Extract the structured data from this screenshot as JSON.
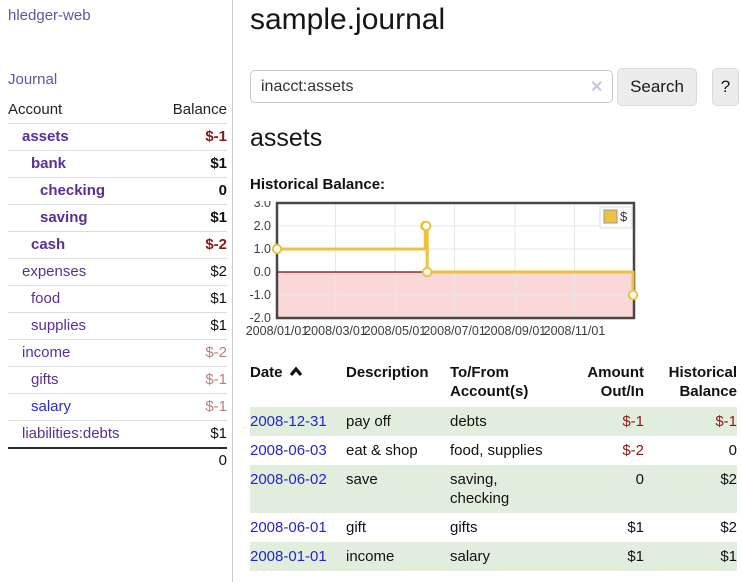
{
  "sidebar": {
    "app_title": "hledger-web",
    "journal_link": "Journal",
    "account_header": "Account",
    "balance_header": "Balance",
    "accounts": [
      {
        "name": "assets",
        "depth": 1,
        "balance": "$-1",
        "emph": true,
        "balance_tone": "neg-strong"
      },
      {
        "name": "bank",
        "depth": 2,
        "balance": "$1",
        "emph": true,
        "balance_tone": "pos"
      },
      {
        "name": "checking",
        "depth": 3,
        "balance": "0",
        "emph": true,
        "balance_tone": "pos"
      },
      {
        "name": "saving",
        "depth": 3,
        "balance": "$1",
        "emph": true,
        "balance_tone": "pos"
      },
      {
        "name": "cash",
        "depth": 2,
        "balance": "$-2",
        "emph": true,
        "balance_tone": "neg-strong"
      },
      {
        "name": "expenses",
        "depth": 1,
        "balance": "$2",
        "emph": false,
        "balance_tone": "pos"
      },
      {
        "name": "food",
        "depth": 2,
        "balance": "$1",
        "emph": false,
        "balance_tone": "pos"
      },
      {
        "name": "supplies",
        "depth": 2,
        "balance": "$1",
        "emph": false,
        "balance_tone": "pos"
      },
      {
        "name": "income",
        "depth": 1,
        "balance": "$-2",
        "emph": false,
        "balance_tone": "neg-muted"
      },
      {
        "name": "gifts",
        "depth": 2,
        "balance": "$-1",
        "emph": false,
        "balance_tone": "neg-muted"
      },
      {
        "name": "salary",
        "depth": 2,
        "balance": "$-1",
        "emph": false,
        "balance_tone": "neg-muted",
        "link_tone": "blue"
      },
      {
        "name": "liabilities:debts",
        "depth": 1,
        "balance": "$1",
        "emph": false,
        "balance_tone": "pos"
      }
    ],
    "total": "0"
  },
  "header": {
    "title": "sample.journal"
  },
  "search": {
    "value": "inacct:assets",
    "clear_icon": "✕",
    "button_label": "Search",
    "help_label": "?"
  },
  "account_page": {
    "heading": "assets",
    "chart_label": "Historical Balance:"
  },
  "chart_data": {
    "type": "line",
    "step": true,
    "title": "Historical Balance",
    "series": [
      {
        "name": "$",
        "color": "#edc240",
        "points": [
          [
            "2008-01-01",
            1
          ],
          [
            "2008-06-01",
            2
          ],
          [
            "2008-06-02",
            2
          ],
          [
            "2008-06-03",
            0
          ],
          [
            "2008-12-31",
            -1
          ]
        ]
      }
    ],
    "xlim": [
      "2008-01-01",
      "2008-12-31"
    ],
    "ylim": [
      -2,
      3
    ],
    "y_tick_labels": [
      "3.0",
      "2.0",
      "1.0",
      "0.0",
      "-1.0",
      "-2.0"
    ],
    "x_ticks": [
      {
        "date": "2008-01-01",
        "label": "2008/01/01"
      },
      {
        "date": "2008-03-01",
        "label": "2008/03/01"
      },
      {
        "date": "2008-05-01",
        "label": "2008/05/01"
      },
      {
        "date": "2008-07-01",
        "label": "2008/07/01"
      },
      {
        "date": "2008-09-01",
        "label": "2008/09/01"
      },
      {
        "date": "2008-11-01",
        "label": "2008/11/01"
      }
    ],
    "legend": {
      "label": "$",
      "position": "top-right",
      "swatch_color": "#edc240"
    },
    "grid": true,
    "zero_line_color": "#8b0000",
    "negative_region_fill": "#fbd8d8",
    "border_color": "#474747"
  },
  "register": {
    "headers": {
      "date": "Date",
      "description": "Description",
      "accounts_l1": "To/From",
      "accounts_l2": "Account(s)",
      "amount_l1": "Amount",
      "amount_l2": "Out/In",
      "balance_l1": "Historical",
      "balance_l2": "Balance"
    },
    "rows": [
      {
        "date": "2008-12-31",
        "description": "pay off",
        "accounts": "debts",
        "amount": "$-1",
        "amount_tone": "neg",
        "balance": "$-1",
        "balance_tone": "neg"
      },
      {
        "date": "2008-06-03",
        "description": "eat & shop",
        "accounts": "food, supplies",
        "amount": "$-2",
        "amount_tone": "neg",
        "balance": "0",
        "balance_tone": "pos"
      },
      {
        "date": "2008-06-02",
        "description": "save",
        "accounts": "saving, checking",
        "amount": "0",
        "amount_tone": "pos",
        "balance": "$2",
        "balance_tone": "pos"
      },
      {
        "date": "2008-06-01",
        "description": "gift",
        "accounts": "gifts",
        "amount": "$1",
        "amount_tone": "pos",
        "balance": "$2",
        "balance_tone": "pos"
      },
      {
        "date": "2008-01-01",
        "description": "income",
        "accounts": "salary",
        "amount": "$1",
        "amount_tone": "pos",
        "balance": "$1",
        "balance_tone": "pos"
      }
    ]
  }
}
